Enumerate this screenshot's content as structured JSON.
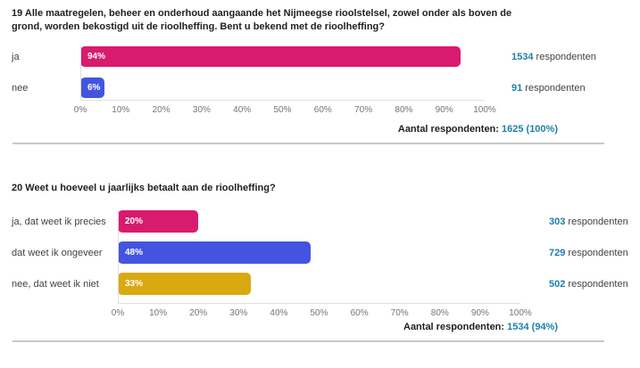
{
  "colors": {
    "pink": "#D81B6E",
    "blue": "#4355E0",
    "yellow": "#D9A90F",
    "count_number": "#1F7FA7",
    "title_text": "#212121",
    "label_text": "#424242",
    "tick_text": "#757575",
    "divider": "#C9C9C9",
    "axis": "#E0E0E0"
  },
  "questions": [
    {
      "title": "19 Alle maatregelen, beheer en onderhoud aangaande het Nijmeegse rioolstelsel, zowel onder als boven de grond, worden bekostigd uit de rioolheffing. Bent u bekend met de rioolheffing?",
      "rows": [
        {
          "label": "ja",
          "value": 94,
          "value_label": "94%",
          "count": "1534",
          "count_word": "respondenten",
          "color_key": "pink"
        },
        {
          "label": "nee",
          "value": 6,
          "value_label": "6%",
          "count": "91",
          "count_word": "respondenten",
          "color_key": "blue"
        }
      ],
      "ticks": [
        "0%",
        "10%",
        "20%",
        "30%",
        "40%",
        "50%",
        "60%",
        "70%",
        "80%",
        "90%",
        "100%"
      ],
      "total_label": "Aantal respondenten: ",
      "total_value": "1625 (100%)"
    },
    {
      "title": "20 Weet u hoeveel u jaarlijks betaalt aan de rioolheffing?",
      "rows": [
        {
          "label": "ja, dat weet ik precies",
          "value": 20,
          "value_label": "20%",
          "count": "303",
          "count_word": "respondenten",
          "color_key": "pink"
        },
        {
          "label": "dat weet ik ongeveer",
          "value": 48,
          "value_label": "48%",
          "count": "729",
          "count_word": "respondenten",
          "color_key": "blue"
        },
        {
          "label": "nee, dat weet ik niet",
          "value": 33,
          "value_label": "33%",
          "count": "502",
          "count_word": "respondenten",
          "color_key": "yellow"
        }
      ],
      "ticks": [
        "0%",
        "10%",
        "20%",
        "30%",
        "40%",
        "50%",
        "60%",
        "70%",
        "80%",
        "90%",
        "100%"
      ],
      "total_label": "Aantal respondenten: ",
      "total_value": "1534 (94%)"
    }
  ],
  "chart_data": [
    {
      "type": "bar",
      "orientation": "horizontal",
      "title": "19 Alle maatregelen, beheer en onderhoud aangaande het Nijmeegse rioolstelsel, zowel onder als boven de grond, worden bekostigd uit de rioolheffing. Bent u bekend met de rioolheffing?",
      "categories": [
        "ja",
        "nee"
      ],
      "values": [
        94,
        6
      ],
      "respondent_counts": [
        1534,
        91
      ],
      "bar_colors": [
        "#D81B6E",
        "#4355E0"
      ],
      "xlabel": "",
      "ylabel": "",
      "xlim": [
        0,
        100
      ],
      "x_tick_labels": [
        "0%",
        "10%",
        "20%",
        "30%",
        "40%",
        "50%",
        "60%",
        "70%",
        "80%",
        "90%",
        "100%"
      ],
      "grid": false,
      "annotation": "Aantal respondenten: 1625 (100%)"
    },
    {
      "type": "bar",
      "orientation": "horizontal",
      "title": "20 Weet u hoeveel u jaarlijks betaalt aan de rioolheffing?",
      "categories": [
        "ja, dat weet ik precies",
        "dat weet ik ongeveer",
        "nee, dat weet ik niet"
      ],
      "values": [
        20,
        48,
        33
      ],
      "respondent_counts": [
        303,
        729,
        502
      ],
      "bar_colors": [
        "#D81B6E",
        "#4355E0",
        "#D9A90F"
      ],
      "xlabel": "",
      "ylabel": "",
      "xlim": [
        0,
        100
      ],
      "x_tick_labels": [
        "0%",
        "10%",
        "20%",
        "30%",
        "40%",
        "50%",
        "60%",
        "70%",
        "80%",
        "90%",
        "100%"
      ],
      "grid": false,
      "annotation": "Aantal respondenten: 1534 (94%)"
    }
  ]
}
